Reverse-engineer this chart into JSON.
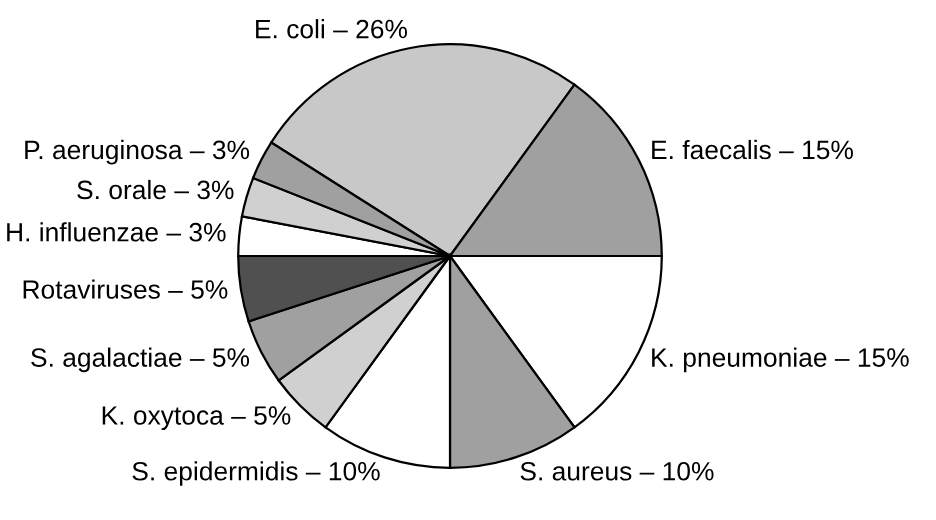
{
  "chart_data": {
    "type": "pie",
    "categories": [
      "E. coli – 26%",
      "E. faecalis – 15%",
      "K. pneumoniae – 15%",
      "S. aureus – 10%",
      "S. epidermidis – 10%",
      "K. oxytoca – 5%",
      "S. agalactiae – 5%",
      "Rotaviruses – 5%",
      "H. influenzae – 3%",
      "S. orale – 3%",
      "P. aeruginosa – 3%"
    ],
    "values": [
      26,
      15,
      15,
      10,
      10,
      5,
      5,
      5,
      3,
      3,
      3
    ],
    "colors": [
      "#c8c8c8",
      "#a0a0a0",
      "#ffffff",
      "#a0a0a0",
      "#ffffff",
      "#d0d0d0",
      "#a0a0a0",
      "#505050",
      "#ffffff",
      "#d0d0d0",
      "#a0a0a0"
    ]
  }
}
